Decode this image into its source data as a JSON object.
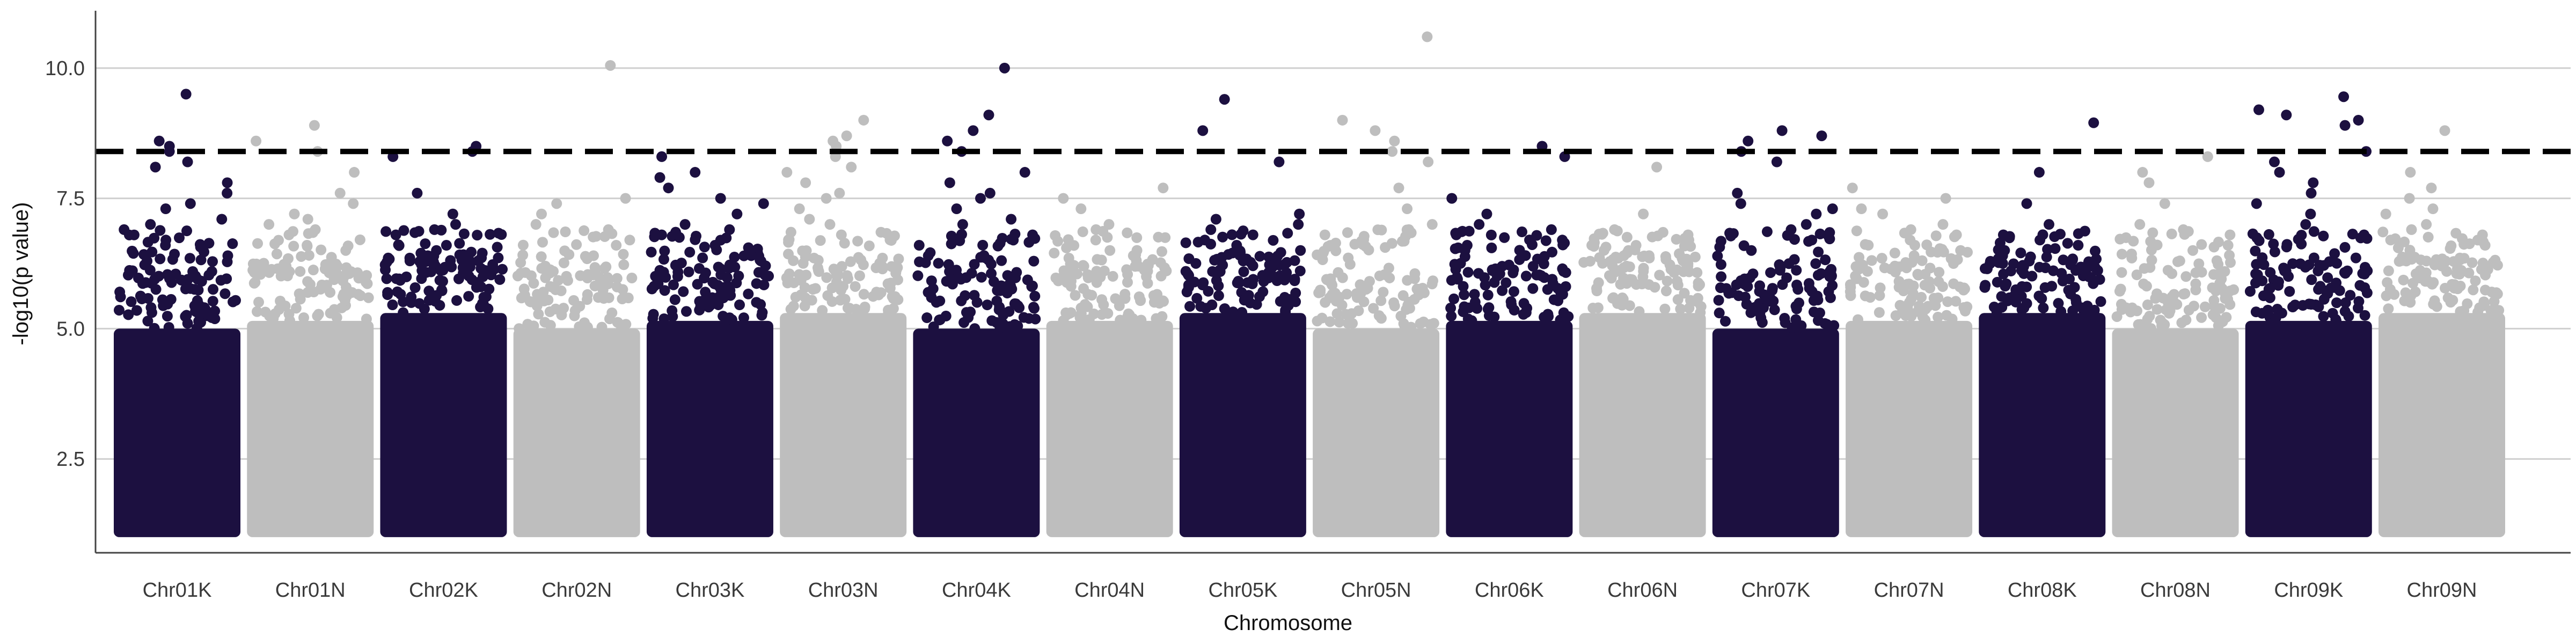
{
  "chart_data": {
    "type": "scatter",
    "subtype": "manhattan",
    "xlabel": "Chromosome",
    "ylabel": "-log10(p value)",
    "ylim": [
      0.7,
      11.1
    ],
    "yticks": [
      2.5,
      5.0,
      7.5,
      10.0
    ],
    "grid": "horizontal-major",
    "legend": "none",
    "threshold": 8.4,
    "threshold_style": "dashed",
    "colors": {
      "K": "#1c1040",
      "N": "#bebebe"
    },
    "chromosomes": [
      {
        "name": "Chr01K",
        "group": "K",
        "peaks": [
          9.5,
          8.6,
          8.5,
          8.4,
          8.2,
          8.1,
          7.8,
          7.6,
          7.4,
          7.3,
          7.1,
          7.0,
          6.9,
          6.7,
          6.6,
          6.4
        ]
      },
      {
        "name": "Chr01N",
        "group": "N",
        "peaks": [
          8.9,
          8.6,
          8.4,
          8.0,
          7.6,
          7.4,
          7.2,
          7.1,
          7.0,
          6.9,
          6.8,
          6.6,
          6.5
        ]
      },
      {
        "name": "Chr02K",
        "group": "K",
        "peaks": [
          8.5,
          8.4,
          8.3,
          7.6,
          7.2,
          7.0,
          6.9,
          6.8,
          6.6,
          6.5,
          6.4,
          6.3
        ]
      },
      {
        "name": "Chr02N",
        "group": "N",
        "peaks": [
          10.05,
          7.5,
          7.4,
          7.2,
          7.0,
          6.9,
          6.7,
          6.6,
          6.4,
          6.2,
          6.1
        ]
      },
      {
        "name": "Chr03K",
        "group": "K",
        "peaks": [
          8.3,
          8.0,
          7.9,
          7.7,
          7.5,
          7.4,
          7.2,
          7.0,
          6.9,
          6.8,
          6.6,
          6.4
        ]
      },
      {
        "name": "Chr03N",
        "group": "N",
        "peaks": [
          9.0,
          8.7,
          8.6,
          8.5,
          8.3,
          8.1,
          8.0,
          7.8,
          7.6,
          7.5,
          7.3,
          7.1,
          7.0,
          6.8
        ]
      },
      {
        "name": "Chr04K",
        "group": "K",
        "peaks": [
          10.0,
          9.1,
          8.8,
          8.6,
          8.4,
          8.0,
          7.8,
          7.6,
          7.5,
          7.3,
          7.1,
          7.0,
          6.8,
          6.6
        ]
      },
      {
        "name": "Chr04N",
        "group": "N",
        "peaks": [
          7.7,
          7.5,
          7.3,
          7.0,
          6.9,
          6.7,
          6.5,
          6.4,
          6.2,
          6.1,
          6.0
        ]
      },
      {
        "name": "Chr05K",
        "group": "K",
        "peaks": [
          9.4,
          8.8,
          8.2,
          7.2,
          7.1,
          7.0,
          6.9,
          6.8,
          6.7,
          6.6,
          6.5
        ]
      },
      {
        "name": "Chr05N",
        "group": "N",
        "peaks": [
          10.6,
          9.0,
          8.8,
          8.6,
          8.4,
          8.2,
          7.7,
          7.3,
          7.0,
          6.9,
          6.8
        ]
      },
      {
        "name": "Chr06K",
        "group": "K",
        "peaks": [
          8.5,
          8.3,
          7.5,
          7.2,
          7.0,
          6.9,
          6.8,
          6.7,
          6.6,
          6.5
        ]
      },
      {
        "name": "Chr06N",
        "group": "N",
        "peaks": [
          8.1,
          7.2,
          6.9,
          6.8,
          6.7,
          6.6,
          6.5,
          6.4,
          6.2
        ]
      },
      {
        "name": "Chr07K",
        "group": "K",
        "peaks": [
          8.8,
          8.7,
          8.6,
          8.4,
          8.2,
          7.6,
          7.4,
          7.3,
          7.2,
          7.0,
          6.9,
          6.7,
          6.5
        ]
      },
      {
        "name": "Chr07N",
        "group": "N",
        "peaks": [
          7.7,
          7.5,
          7.3,
          7.2,
          7.0,
          6.9,
          6.8,
          6.6,
          6.5,
          6.4
        ]
      },
      {
        "name": "Chr08K",
        "group": "K",
        "peaks": [
          8.95,
          8.0,
          7.4,
          7.0,
          6.8,
          6.7,
          6.6,
          6.5,
          6.4,
          6.2
        ]
      },
      {
        "name": "Chr08N",
        "group": "N",
        "peaks": [
          8.3,
          8.0,
          7.8,
          7.4,
          7.0,
          6.9,
          6.8,
          6.6,
          6.5,
          6.3
        ]
      },
      {
        "name": "Chr09K",
        "group": "K",
        "peaks": [
          9.45,
          9.2,
          9.1,
          9.0,
          8.9,
          8.4,
          8.2,
          8.0,
          7.8,
          7.6,
          7.4,
          7.2,
          7.0,
          6.8
        ]
      },
      {
        "name": "Chr09N",
        "group": "N",
        "peaks": [
          8.8,
          8.0,
          7.7,
          7.5,
          7.3,
          7.2,
          7.0,
          6.9,
          6.8,
          6.7,
          6.6
        ]
      }
    ]
  }
}
